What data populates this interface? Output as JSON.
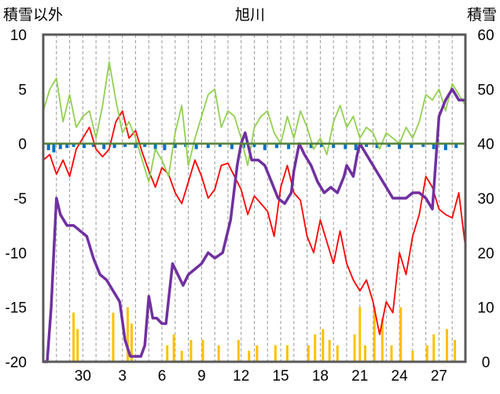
{
  "chart_data": {
    "type": "line",
    "title": "旭川",
    "left_axis": {
      "label": "積雪以外",
      "range": [
        -20,
        10
      ],
      "ticks": [
        "10",
        "5",
        "0",
        "-5",
        "-10",
        "-15",
        "-20"
      ]
    },
    "right_axis": {
      "label": "積雪",
      "range": [
        0,
        60
      ],
      "ticks": [
        "60",
        "50",
        "40",
        "30",
        "20",
        "10",
        "0"
      ]
    },
    "x_axis": {
      "range_days": [
        27,
        59
      ],
      "ticks": [
        {
          "day": 30,
          "label": "30"
        },
        {
          "day": 33,
          "label": "3"
        },
        {
          "day": 36,
          "label": "6"
        },
        {
          "day": 39,
          "label": "9"
        },
        {
          "day": 42,
          "label": "12"
        },
        {
          "day": 45,
          "label": "15"
        },
        {
          "day": 48,
          "label": "18"
        },
        {
          "day": 51,
          "label": "21"
        },
        {
          "day": 54,
          "label": "24"
        },
        {
          "day": 57,
          "label": "27"
        }
      ]
    },
    "grid": "vertical dashed, every day",
    "colors": {
      "temperature": "#ff0000",
      "wind": "#92d050",
      "precipitation": "#ffc000",
      "snow_diff": "#0070c0",
      "snow_depth": "#7030a0",
      "zero_line": "#538135"
    },
    "series": [
      {
        "key": "temperature",
        "axis": "left",
        "points": [
          [
            27.0,
            -1.5
          ],
          [
            27.5,
            -1.0
          ],
          [
            28.0,
            -2.8
          ],
          [
            28.5,
            -1.5
          ],
          [
            29.0,
            -3.0
          ],
          [
            29.5,
            -0.5
          ],
          [
            30.0,
            0.5
          ],
          [
            30.5,
            1.5
          ],
          [
            31.0,
            -0.5
          ],
          [
            31.5,
            -1.2
          ],
          [
            32.0,
            -0.5
          ],
          [
            32.5,
            2.0
          ],
          [
            33.0,
            3.0
          ],
          [
            33.5,
            0.5
          ],
          [
            34.0,
            1.2
          ],
          [
            34.5,
            -0.8
          ],
          [
            35.0,
            -2.5
          ],
          [
            35.5,
            -4.0
          ],
          [
            36.0,
            -2.2
          ],
          [
            36.5,
            -2.8
          ],
          [
            37.0,
            -4.5
          ],
          [
            37.5,
            -5.5
          ],
          [
            38.0,
            -3.5
          ],
          [
            38.5,
            -1.5
          ],
          [
            39.0,
            -3.0
          ],
          [
            39.5,
            -5.0
          ],
          [
            40.0,
            -4.2
          ],
          [
            40.5,
            -2.0
          ],
          [
            41.0,
            -1.8
          ],
          [
            41.5,
            -3.0
          ],
          [
            42.0,
            -4.2
          ],
          [
            42.5,
            -6.5
          ],
          [
            43.0,
            -4.8
          ],
          [
            43.5,
            -5.5
          ],
          [
            44.0,
            -6.2
          ],
          [
            44.5,
            -8.5
          ],
          [
            45.0,
            -4.0
          ],
          [
            45.5,
            -2.0
          ],
          [
            46.0,
            -4.5
          ],
          [
            46.5,
            -5.2
          ],
          [
            47.0,
            -8.5
          ],
          [
            47.5,
            -10.0
          ],
          [
            48.0,
            -7.0
          ],
          [
            48.5,
            -9.0
          ],
          [
            49.0,
            -11.0
          ],
          [
            49.5,
            -8.0
          ],
          [
            50.0,
            -11.0
          ],
          [
            50.5,
            -12.5
          ],
          [
            51.0,
            -13.5
          ],
          [
            51.5,
            -12.5
          ],
          [
            52.0,
            -14.5
          ],
          [
            52.5,
            -17.5
          ],
          [
            53.0,
            -14.5
          ],
          [
            53.5,
            -15.5
          ],
          [
            54.0,
            -10.0
          ],
          [
            54.5,
            -12.0
          ],
          [
            55.0,
            -8.5
          ],
          [
            55.5,
            -6.5
          ],
          [
            56.0,
            -3.0
          ],
          [
            56.5,
            -4.0
          ],
          [
            57.0,
            -6.0
          ],
          [
            57.5,
            -6.5
          ],
          [
            58.0,
            -6.8
          ],
          [
            58.5,
            -4.5
          ],
          [
            59.0,
            -9.5
          ]
        ]
      },
      {
        "key": "wind",
        "axis": "left",
        "points": [
          [
            27.0,
            3.0
          ],
          [
            27.5,
            5.0
          ],
          [
            28.0,
            6.0
          ],
          [
            28.5,
            2.0
          ],
          [
            29.0,
            4.5
          ],
          [
            29.5,
            1.5
          ],
          [
            30.0,
            2.5
          ],
          [
            30.5,
            3.0
          ],
          [
            31.0,
            0.5
          ],
          [
            31.5,
            3.5
          ],
          [
            32.0,
            7.5
          ],
          [
            32.5,
            4.0
          ],
          [
            33.0,
            1.0
          ],
          [
            33.5,
            2.0
          ],
          [
            34.0,
            0.5
          ],
          [
            34.5,
            -1.5
          ],
          [
            35.0,
            -3.5
          ],
          [
            35.5,
            -0.5
          ],
          [
            36.0,
            -1.5
          ],
          [
            36.5,
            -3.0
          ],
          [
            37.0,
            1.0
          ],
          [
            37.5,
            3.5
          ],
          [
            38.0,
            -2.0
          ],
          [
            38.5,
            0.5
          ],
          [
            39.0,
            2.5
          ],
          [
            39.5,
            4.5
          ],
          [
            40.0,
            5.0
          ],
          [
            40.5,
            1.5
          ],
          [
            41.0,
            3.0
          ],
          [
            41.5,
            2.5
          ],
          [
            42.0,
            0.5
          ],
          [
            42.5,
            -2.0
          ],
          [
            43.0,
            1.5
          ],
          [
            43.5,
            2.5
          ],
          [
            44.0,
            3.0
          ],
          [
            44.5,
            1.0
          ],
          [
            45.0,
            0.0
          ],
          [
            45.5,
            2.5
          ],
          [
            46.0,
            0.5
          ],
          [
            46.5,
            3.0
          ],
          [
            47.0,
            1.5
          ],
          [
            47.5,
            -0.5
          ],
          [
            48.0,
            0.5
          ],
          [
            48.5,
            -1.0
          ],
          [
            49.0,
            2.0
          ],
          [
            49.5,
            3.5
          ],
          [
            50.0,
            1.5
          ],
          [
            50.5,
            2.5
          ],
          [
            51.0,
            0.5
          ],
          [
            51.5,
            1.5
          ],
          [
            52.0,
            1.0
          ],
          [
            52.5,
            -0.5
          ],
          [
            53.0,
            1.0
          ],
          [
            53.5,
            0.5
          ],
          [
            54.0,
            0.0
          ],
          [
            54.5,
            1.5
          ],
          [
            55.0,
            0.5
          ],
          [
            55.5,
            2.0
          ],
          [
            56.0,
            4.5
          ],
          [
            56.5,
            4.0
          ],
          [
            57.0,
            5.0
          ],
          [
            57.5,
            3.0
          ],
          [
            58.0,
            5.5
          ],
          [
            58.5,
            4.5
          ],
          [
            59.0,
            3.5
          ]
        ]
      },
      {
        "key": "snow_depth",
        "axis": "right",
        "points": [
          [
            27.0,
            0
          ],
          [
            27.3,
            0
          ],
          [
            27.6,
            10
          ],
          [
            27.8,
            20
          ],
          [
            28.0,
            30
          ],
          [
            28.3,
            27
          ],
          [
            28.8,
            25
          ],
          [
            29.3,
            25
          ],
          [
            29.8,
            24
          ],
          [
            30.3,
            23
          ],
          [
            30.8,
            19
          ],
          [
            31.3,
            16
          ],
          [
            31.8,
            15
          ],
          [
            32.3,
            13
          ],
          [
            32.8,
            11
          ],
          [
            33.2,
            4
          ],
          [
            33.6,
            1
          ],
          [
            34.0,
            1
          ],
          [
            34.4,
            1
          ],
          [
            34.7,
            3
          ],
          [
            35.0,
            12
          ],
          [
            35.3,
            8
          ],
          [
            35.6,
            8
          ],
          [
            36.0,
            7
          ],
          [
            36.3,
            7
          ],
          [
            36.8,
            18
          ],
          [
            37.2,
            16
          ],
          [
            37.6,
            14
          ],
          [
            38.0,
            16
          ],
          [
            38.5,
            17
          ],
          [
            39.0,
            18
          ],
          [
            39.5,
            20
          ],
          [
            40.0,
            19
          ],
          [
            40.6,
            20
          ],
          [
            41.2,
            26
          ],
          [
            41.7,
            36
          ],
          [
            42.0,
            40
          ],
          [
            42.3,
            42
          ],
          [
            42.6,
            39
          ],
          [
            42.8,
            37
          ],
          [
            43.3,
            37
          ],
          [
            43.8,
            36
          ],
          [
            44.3,
            33
          ],
          [
            44.8,
            30
          ],
          [
            45.3,
            29
          ],
          [
            45.8,
            31
          ],
          [
            46.0,
            35
          ],
          [
            46.4,
            40
          ],
          [
            46.8,
            38
          ],
          [
            47.3,
            36
          ],
          [
            47.8,
            33
          ],
          [
            48.3,
            31
          ],
          [
            48.8,
            32
          ],
          [
            49.3,
            31
          ],
          [
            49.8,
            34
          ],
          [
            50.0,
            36
          ],
          [
            50.5,
            34
          ],
          [
            50.8,
            38
          ],
          [
            51.0,
            40
          ],
          [
            51.5,
            38
          ],
          [
            52.0,
            36
          ],
          [
            52.5,
            34
          ],
          [
            53.0,
            32
          ],
          [
            53.5,
            30
          ],
          [
            54.0,
            30
          ],
          [
            54.5,
            30
          ],
          [
            55.0,
            31
          ],
          [
            55.5,
            31
          ],
          [
            56.0,
            30
          ],
          [
            56.5,
            28
          ],
          [
            57.0,
            45
          ],
          [
            57.5,
            48
          ],
          [
            58.0,
            50
          ],
          [
            58.5,
            48
          ],
          [
            59.0,
            48
          ]
        ]
      }
    ],
    "precipitation_bars": [
      [
        29.3,
        9
      ],
      [
        29.6,
        6
      ],
      [
        32.3,
        9
      ],
      [
        33.4,
        10
      ],
      [
        33.7,
        7
      ],
      [
        36.4,
        3
      ],
      [
        36.9,
        5
      ],
      [
        37.5,
        2
      ],
      [
        38.2,
        4
      ],
      [
        39.1,
        4
      ],
      [
        40.3,
        3
      ],
      [
        41.8,
        4
      ],
      [
        42.6,
        2
      ],
      [
        43.2,
        3
      ],
      [
        44.6,
        3
      ],
      [
        45.5,
        3
      ],
      [
        47.1,
        3
      ],
      [
        47.6,
        5
      ],
      [
        48.2,
        6
      ],
      [
        48.7,
        4
      ],
      [
        49.3,
        3
      ],
      [
        50.6,
        5
      ],
      [
        51.0,
        10
      ],
      [
        51.4,
        3
      ],
      [
        52.1,
        10
      ],
      [
        52.7,
        8
      ],
      [
        53.4,
        3
      ],
      [
        54.1,
        10
      ],
      [
        55.0,
        2
      ],
      [
        56.1,
        3
      ],
      [
        56.6,
        5
      ],
      [
        57.6,
        6
      ],
      [
        58.2,
        4
      ]
    ],
    "snow_diff_bars": [
      [
        27.4,
        -0.6
      ],
      [
        27.8,
        -0.8
      ],
      [
        28.3,
        -0.5
      ],
      [
        28.8,
        -0.4
      ],
      [
        29.3,
        -0.3
      ],
      [
        30.1,
        -0.4
      ],
      [
        30.8,
        -0.3
      ],
      [
        31.6,
        -0.5
      ],
      [
        32.4,
        -0.4
      ],
      [
        33.2,
        -0.3
      ],
      [
        34.0,
        -0.4
      ],
      [
        34.7,
        -0.3
      ],
      [
        35.5,
        -0.5
      ],
      [
        36.2,
        -0.6
      ],
      [
        37.0,
        -0.4
      ],
      [
        37.8,
        -0.3
      ],
      [
        38.6,
        -0.5
      ],
      [
        39.5,
        -0.4
      ],
      [
        40.4,
        -0.3
      ],
      [
        41.3,
        -0.5
      ],
      [
        42.2,
        -0.4
      ],
      [
        43.0,
        -0.3
      ],
      [
        43.8,
        -0.6
      ],
      [
        44.7,
        -0.4
      ],
      [
        45.6,
        -0.5
      ],
      [
        46.4,
        -0.3
      ],
      [
        47.3,
        -0.4
      ],
      [
        48.1,
        -0.3
      ],
      [
        49.0,
        -0.4
      ],
      [
        49.9,
        -0.5
      ],
      [
        50.7,
        -0.6
      ],
      [
        51.5,
        -0.3
      ],
      [
        52.3,
        -0.4
      ],
      [
        53.2,
        -0.3
      ],
      [
        54.0,
        -0.5
      ],
      [
        54.9,
        -0.4
      ],
      [
        55.8,
        -0.3
      ],
      [
        56.6,
        -0.5
      ],
      [
        57.5,
        -0.6
      ],
      [
        58.3,
        -0.4
      ]
    ]
  }
}
